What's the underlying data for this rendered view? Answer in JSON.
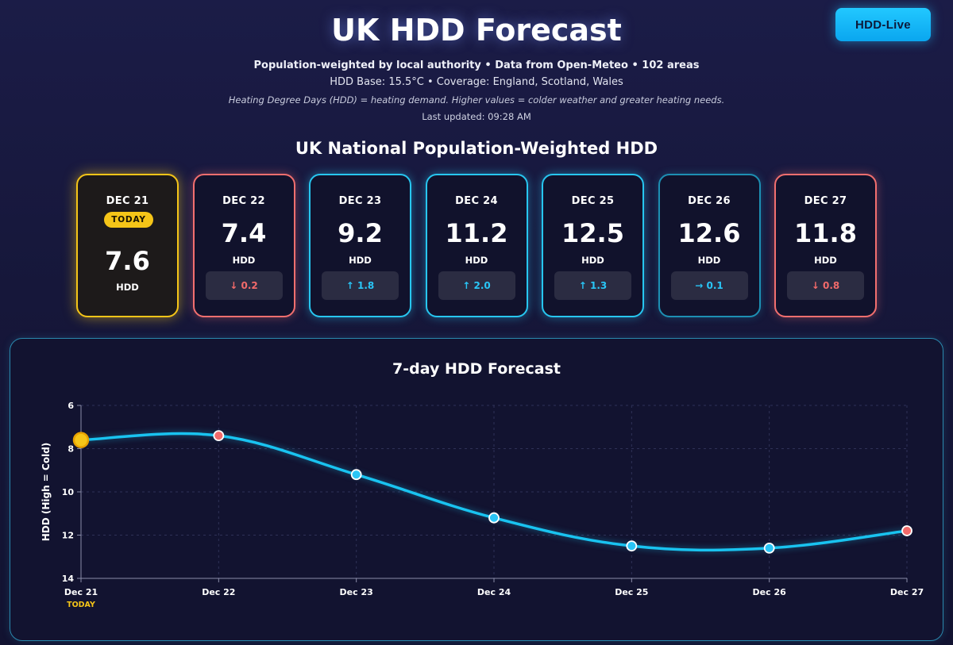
{
  "header": {
    "button_label": "HDD-Live",
    "title": "UK HDD Forecast",
    "subtitle_line1": "Population-weighted by local authority • Data from Open-Meteo • 102 areas",
    "subtitle_line2": "HDD Base: 15.5°C • Coverage: England, Scotland, Wales",
    "note": "Heating Degree Days (HDD) = heating demand. Higher values = colder weather and greater heating needs.",
    "last_updated": "Last updated: 09:28 AM"
  },
  "section_title": "UK National Population-Weighted HDD",
  "cards": [
    {
      "date": "DEC 21",
      "badge": "TODAY",
      "value": "7.6",
      "unit": "HDD",
      "status": "today"
    },
    {
      "date": "DEC 22",
      "value": "7.4",
      "unit": "HDD",
      "delta": "↓ 0.2",
      "status": "down"
    },
    {
      "date": "DEC 23",
      "value": "9.2",
      "unit": "HDD",
      "delta": "↑ 1.8",
      "status": "up"
    },
    {
      "date": "DEC 24",
      "value": "11.2",
      "unit": "HDD",
      "delta": "↑ 2.0",
      "status": "up"
    },
    {
      "date": "DEC 25",
      "value": "12.5",
      "unit": "HDD",
      "delta": "↑ 1.3",
      "status": "up"
    },
    {
      "date": "DEC 26",
      "value": "12.6",
      "unit": "HDD",
      "delta": "→ 0.1",
      "status": "flat"
    },
    {
      "date": "DEC 27",
      "value": "11.8",
      "unit": "HDD",
      "delta": "↓ 0.8",
      "status": "down"
    }
  ],
  "colors": {
    "line": "#19c3f0",
    "up": "#29c5f6",
    "down": "#f26a6a",
    "today": "#f5c518"
  },
  "chart_data": {
    "type": "line",
    "title": "7-day HDD Forecast",
    "xlabel": "",
    "ylabel": "HDD (High = Cold)",
    "categories": [
      "Dec 21",
      "Dec 22",
      "Dec 23",
      "Dec 24",
      "Dec 25",
      "Dec 26",
      "Dec 27"
    ],
    "today_label": "TODAY",
    "series": [
      {
        "name": "HDD",
        "values": [
          7.6,
          7.4,
          9.2,
          11.2,
          12.5,
          12.6,
          11.8
        ],
        "point_status": [
          "today",
          "down",
          "up",
          "up",
          "up",
          "up",
          "down"
        ]
      }
    ],
    "yticks": [
      6,
      8,
      10,
      12,
      14
    ],
    "ylim": [
      6,
      14
    ],
    "y_inverted": true,
    "grid": true
  }
}
